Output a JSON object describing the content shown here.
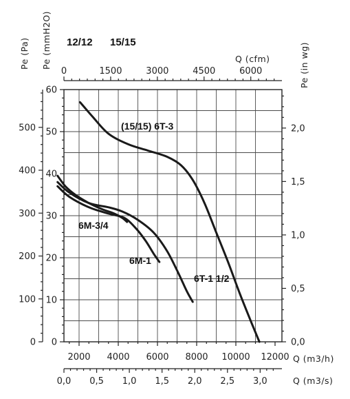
{
  "header": {
    "model_a": "12/12",
    "model_b": "15/15"
  },
  "chart_data": {
    "type": "line",
    "x_axis": {
      "label": "Q (m3/h)",
      "range": [
        900,
        12000
      ],
      "ticks": [
        2000,
        4000,
        6000,
        8000,
        10000,
        12000
      ],
      "tick_labels": [
        "2000",
        "4000",
        "6000",
        "8000",
        "10000",
        "12000"
      ]
    },
    "x2_axis_top": {
      "label": "Q (cfm)",
      "range": [
        0,
        7000
      ],
      "ticks": [
        0,
        1500,
        3000,
        4500,
        6000
      ],
      "tick_labels": [
        "0",
        "1500",
        "3000",
        "4500",
        "6000"
      ]
    },
    "x3_axis_bottom": {
      "label": "Q (m3/s)",
      "range": [
        0,
        3.333
      ],
      "ticks": [
        0,
        0.5,
        1.0,
        1.5,
        2.0,
        2.5,
        3.0
      ],
      "tick_labels": [
        "0,0",
        "0,5",
        "1,0",
        "1,5",
        "2,0",
        "2,5",
        "3,0"
      ]
    },
    "y_axis_left_outer": {
      "label": "Pe (Pa)",
      "range": [
        0,
        588
      ],
      "ticks": [
        0,
        100,
        200,
        300,
        400,
        500
      ],
      "tick_labels": [
        "0",
        "100",
        "200",
        "300",
        "400",
        "500"
      ]
    },
    "y_axis_left_inner": {
      "label": "Pe (mmH2O)",
      "range": [
        0,
        60
      ],
      "ticks": [
        0,
        10,
        20,
        30,
        40,
        50,
        60
      ],
      "tick_labels": [
        "0",
        "10",
        "20",
        "30",
        "40",
        "50",
        "60"
      ]
    },
    "y_axis_right": {
      "label": "Pe (in wg)",
      "range": [
        0,
        2.36
      ],
      "ticks": [
        0,
        0.5,
        1.0,
        1.5,
        2.0
      ],
      "tick_labels": [
        "0,0",
        "0,5",
        "1,0",
        "1,5",
        "2,0"
      ]
    },
    "grid": true,
    "series": [
      {
        "name": "(15/15) 6T-3",
        "points": [
          [
            2050,
            57
          ],
          [
            2700,
            53.5
          ],
          [
            3500,
            49.5
          ],
          [
            4500,
            47
          ],
          [
            5500,
            45.5
          ],
          [
            6500,
            44
          ],
          [
            7200,
            42
          ],
          [
            7800,
            38.5
          ],
          [
            8400,
            33
          ],
          [
            9000,
            26
          ],
          [
            9600,
            19
          ],
          [
            10200,
            11.5
          ],
          [
            10800,
            4.5
          ],
          [
            11200,
            0
          ]
        ]
      },
      {
        "name": "6T-1 1/2",
        "points": [
          [
            900,
            38
          ],
          [
            1500,
            35.5
          ],
          [
            2500,
            33
          ],
          [
            3500,
            32
          ],
          [
            4200,
            31
          ],
          [
            5000,
            29
          ],
          [
            5800,
            26
          ],
          [
            6500,
            21.5
          ],
          [
            7100,
            16
          ],
          [
            7500,
            12
          ],
          [
            7800,
            9.5
          ]
        ]
      },
      {
        "name": "6M-1",
        "points": [
          [
            900,
            37
          ],
          [
            1500,
            34.5
          ],
          [
            2500,
            32
          ],
          [
            3500,
            30.5
          ],
          [
            4300,
            29.5
          ],
          [
            4900,
            27
          ],
          [
            5400,
            24
          ],
          [
            5800,
            21
          ],
          [
            6100,
            19
          ]
        ]
      },
      {
        "name": "6M-3/4",
        "points": [
          [
            900,
            39.5
          ],
          [
            1300,
            37
          ],
          [
            1800,
            35
          ],
          [
            2500,
            33
          ],
          [
            3200,
            31.5
          ],
          [
            3800,
            30.5
          ],
          [
            4200,
            29.5
          ],
          [
            4450,
            28.5
          ]
        ]
      }
    ],
    "curve_labels": [
      "(15/15) 6T-3",
      "6T-1 1/2",
      "6M-1",
      "6M-3/4"
    ]
  }
}
